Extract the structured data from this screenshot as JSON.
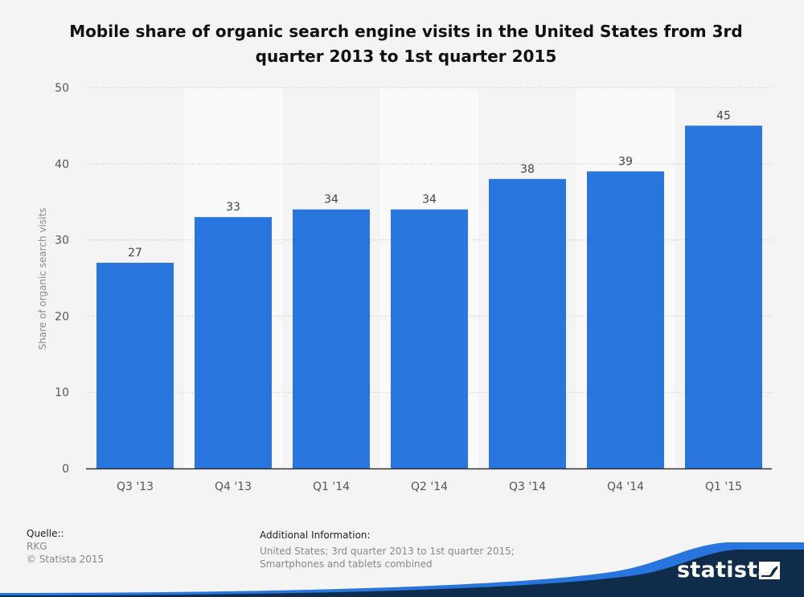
{
  "chart_data": {
    "type": "bar",
    "title": "Mobile share of organic search engine visits in the United States from 3rd quarter 2013 to 1st quarter 2015",
    "categories": [
      "Q3 '13",
      "Q4 '13",
      "Q1 '14",
      "Q2 '14",
      "Q3 '14",
      "Q4 '14",
      "Q1 '15"
    ],
    "values": [
      27,
      33,
      34,
      34,
      38,
      39,
      45
    ],
    "xlabel": "",
    "ylabel": "Share of organic search visits",
    "ylim": [
      0,
      50
    ],
    "yticks": [
      0,
      10,
      20,
      30,
      40,
      50
    ],
    "grid": true,
    "legend": "none",
    "bar_color": "#2876dd"
  },
  "footer": {
    "source_heading": "Quelle::",
    "source_name": "RKG",
    "copyright": "© Statista 2015",
    "info_heading": "Additional Information:",
    "info_text": "United States; 3rd quarter 2013 to 1st quarter 2015; Smartphones and tablets combined"
  },
  "brand": {
    "name": "statista",
    "icon": "statista-flag-icon",
    "dark_color": "#0f2d4a",
    "accent_color": "#2876dd"
  }
}
